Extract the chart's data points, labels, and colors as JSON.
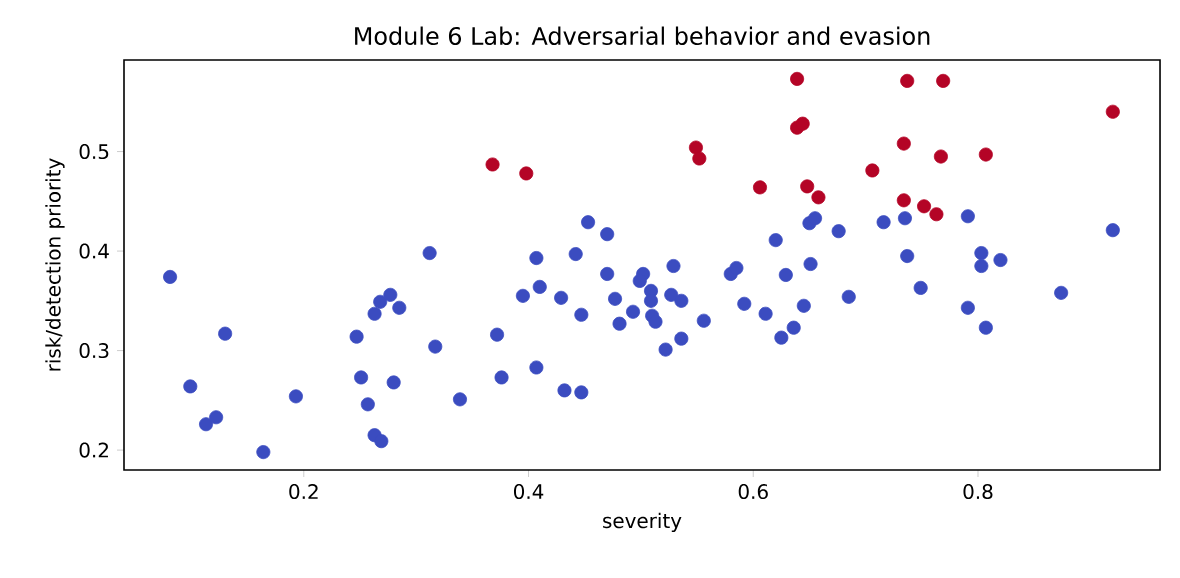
{
  "chart_data": {
    "type": "scatter",
    "title": "Module 6 Lab: Adversarial behavior and evasion",
    "xlabel": "severity",
    "ylabel": "risk/detection priority",
    "xlim": [
      0.04,
      0.962
    ],
    "ylim": [
      0.18,
      0.592
    ],
    "xticks": [
      0.2,
      0.4,
      0.6,
      0.8
    ],
    "yticks": [
      0.2,
      0.3,
      0.4,
      0.5
    ],
    "grid": false,
    "marker": "circle",
    "series": [
      {
        "color": "#3b4cc0",
        "x": [
          0.081,
          0.099,
          0.113,
          0.122,
          0.13,
          0.164,
          0.193,
          0.247,
          0.251,
          0.257,
          0.263,
          0.269,
          0.263,
          0.268,
          0.277,
          0.285,
          0.28,
          0.312,
          0.317,
          0.339,
          0.372,
          0.376,
          0.407,
          0.41,
          0.395,
          0.407,
          0.432,
          0.447,
          0.429,
          0.442,
          0.447,
          0.453,
          0.47,
          0.47,
          0.477,
          0.481,
          0.493,
          0.502,
          0.499,
          0.509,
          0.509,
          0.51,
          0.513,
          0.522,
          0.529,
          0.527,
          0.536,
          0.536,
          0.556,
          0.58,
          0.585,
          0.592,
          0.611,
          0.62,
          0.629,
          0.645,
          0.636,
          0.625,
          0.651,
          0.65,
          0.655,
          0.676,
          0.685,
          0.716,
          0.735,
          0.737,
          0.749,
          0.791,
          0.803,
          0.803,
          0.82,
          0.791,
          0.807,
          0.874,
          0.92
        ],
        "values": [
          0.374,
          0.264,
          0.226,
          0.233,
          0.317,
          0.198,
          0.254,
          0.314,
          0.273,
          0.246,
          0.215,
          0.209,
          0.337,
          0.349,
          0.356,
          0.343,
          0.268,
          0.398,
          0.304,
          0.251,
          0.316,
          0.273,
          0.393,
          0.364,
          0.355,
          0.283,
          0.26,
          0.258,
          0.353,
          0.397,
          0.336,
          0.429,
          0.417,
          0.377,
          0.352,
          0.327,
          0.339,
          0.377,
          0.37,
          0.36,
          0.35,
          0.335,
          0.329,
          0.301,
          0.385,
          0.356,
          0.35,
          0.312,
          0.33,
          0.377,
          0.383,
          0.347,
          0.337,
          0.411,
          0.376,
          0.345,
          0.323,
          0.313,
          0.387,
          0.428,
          0.433,
          0.42,
          0.354,
          0.429,
          0.433,
          0.395,
          0.363,
          0.435,
          0.398,
          0.385,
          0.391,
          0.343,
          0.323,
          0.358,
          0.421
        ]
      },
      {
        "color": "#b40426",
        "x": [
          0.368,
          0.398,
          0.639,
          0.737,
          0.769,
          0.92,
          0.549,
          0.552,
          0.639,
          0.644,
          0.734,
          0.767,
          0.807,
          0.706,
          0.606,
          0.648,
          0.658,
          0.734,
          0.752,
          0.763
        ],
        "values": [
          0.487,
          0.478,
          0.573,
          0.571,
          0.571,
          0.54,
          0.504,
          0.493,
          0.524,
          0.528,
          0.508,
          0.495,
          0.497,
          0.481,
          0.464,
          0.465,
          0.454,
          0.451,
          0.445,
          0.437
        ]
      }
    ]
  }
}
